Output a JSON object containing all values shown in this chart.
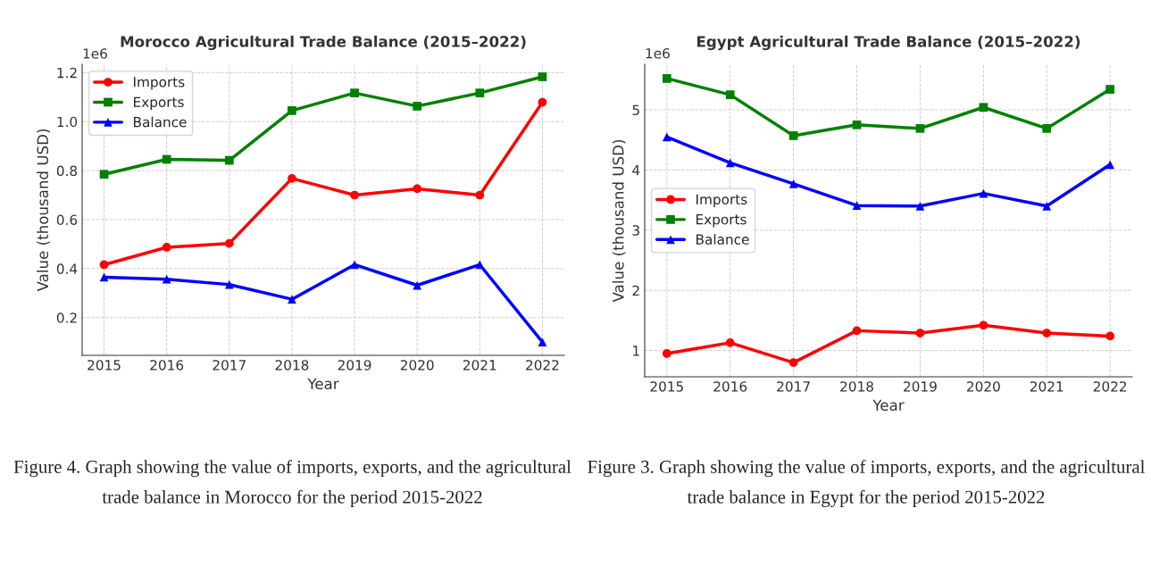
{
  "chart_data": [
    {
      "type": "line",
      "title": "Morocco Agricultural Trade Balance (2015–2022)",
      "xlabel": "Year",
      "ylabel": "Value (thousand USD)",
      "x": [
        2015,
        2016,
        2017,
        2018,
        2019,
        2020,
        2021,
        2022
      ],
      "series": [
        {
          "name": "Imports",
          "color": "#ff0000",
          "marker": "circle",
          "values": [
            0.416,
            0.487,
            0.503,
            0.768,
            0.7,
            0.726,
            0.7,
            1.079
          ]
        },
        {
          "name": "Exports",
          "color": "#008000",
          "marker": "square",
          "values": [
            0.785,
            0.846,
            0.842,
            1.045,
            1.117,
            1.063,
            1.117,
            1.183
          ]
        },
        {
          "name": "Balance",
          "color": "#0000ff",
          "marker": "triangle",
          "values": [
            0.365,
            0.357,
            0.335,
            0.275,
            0.416,
            0.332,
            0.416,
            0.1
          ]
        }
      ],
      "xlim": [
        2014.65,
        2022.35
      ],
      "xticks": [
        2015,
        2016,
        2017,
        2018,
        2019,
        2020,
        2021,
        2022
      ],
      "ylim": [
        0.046,
        1.234
      ],
      "yticks": [
        0.2,
        0.4,
        0.6,
        0.8,
        {
          "value": 1.0,
          "label": "1.0"
        },
        1.2
      ],
      "grid": true,
      "legend": "top left",
      "line_style": "solid",
      "annotations": [
        "1e6",
        "Figure 4. Graph showing the value of imports, exports, and the agricultural trade balance in Morocco for the period 2015-2022"
      ]
    },
    {
      "type": "line",
      "title": "Egypt Agricultural Trade Balance (2015–2022)",
      "xlabel": "Year",
      "ylabel": "Value (thousand USD)",
      "x": [
        2015,
        2016,
        2017,
        2018,
        2019,
        2020,
        2021,
        2022
      ],
      "series": [
        {
          "name": "Imports",
          "color": "#ff0000",
          "marker": "circle",
          "values": [
            0.95,
            1.13,
            0.8,
            1.33,
            1.29,
            1.42,
            1.29,
            1.24
          ]
        },
        {
          "name": "Exports",
          "color": "#008000",
          "marker": "square",
          "values": [
            5.52,
            5.25,
            4.57,
            4.75,
            4.69,
            5.04,
            4.69,
            5.34
          ]
        },
        {
          "name": "Balance",
          "color": "#0000ff",
          "marker": "triangle",
          "values": [
            4.55,
            4.12,
            3.77,
            3.41,
            3.4,
            3.61,
            3.4,
            4.09
          ]
        }
      ],
      "xlim": [
        2014.65,
        2022.35
      ],
      "xticks": [
        2015,
        2016,
        2017,
        2018,
        2019,
        2020,
        2021,
        2022
      ],
      "ylim": [
        0.564,
        5.756
      ],
      "yticks": [
        1,
        2,
        3,
        4,
        5
      ],
      "grid": true,
      "legend": "left",
      "line_style": "solid",
      "annotations": [
        "1e6",
        "Figure 3. Graph showing the value of imports, exports, and the agricultural trade balance in Egypt for the period 2015-2022"
      ]
    }
  ]
}
